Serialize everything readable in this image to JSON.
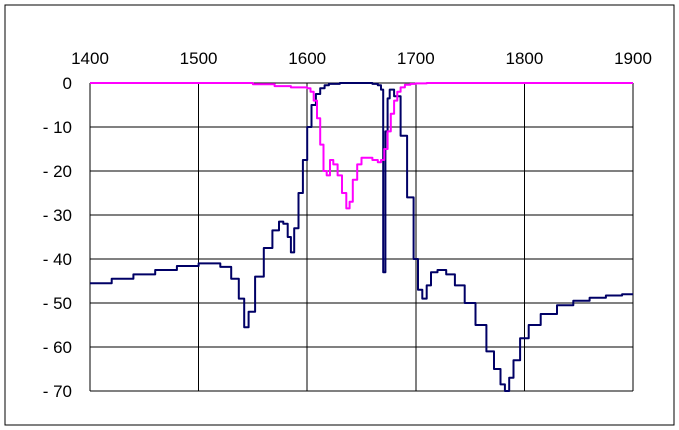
{
  "chart_data": {
    "type": "line",
    "title": "",
    "xlabel": "",
    "ylabel": "",
    "xlim": [
      1400,
      1900
    ],
    "ylim": [
      -70,
      0
    ],
    "x_ticks": [
      1400,
      1500,
      1600,
      1700,
      1800,
      1900
    ],
    "x_tick_labels": [
      "1400",
      "1500",
      "1600",
      "1700",
      "1800",
      "1900"
    ],
    "y_ticks": [
      0,
      -10,
      -20,
      -30,
      -40,
      -50,
      -60,
      -70
    ],
    "y_tick_labels": [
      "0",
      "- 10",
      "- 20",
      "- 30",
      "- 40",
      "- 50",
      "- 60",
      "- 70"
    ],
    "x_axis_position": "top",
    "grid": true,
    "legend": "none",
    "series": [
      {
        "color": "#000066",
        "x": [
          1400,
          1420,
          1440,
          1460,
          1480,
          1500,
          1510,
          1520,
          1530,
          1537,
          1542,
          1546,
          1552,
          1560,
          1568,
          1574,
          1578,
          1582,
          1585,
          1588,
          1592,
          1596,
          1600,
          1604,
          1608,
          1612,
          1616,
          1620,
          1630,
          1640,
          1650,
          1660,
          1665,
          1668,
          1670,
          1672,
          1674,
          1676,
          1680,
          1686,
          1692,
          1698,
          1702,
          1706,
          1710,
          1714,
          1720,
          1728,
          1736,
          1745,
          1755,
          1765,
          1772,
          1778,
          1782,
          1786,
          1790,
          1796,
          1804,
          1815,
          1830,
          1845,
          1860,
          1875,
          1890,
          1900
        ],
        "y": [
          -45.5,
          -44.5,
          -43.5,
          -42.5,
          -41.6,
          -41.0,
          -41.0,
          -41.8,
          -44.5,
          -49.0,
          -55.5,
          -52.0,
          -44.0,
          -37.5,
          -33.5,
          -31.5,
          -32.0,
          -35.0,
          -38.5,
          -33.0,
          -25.0,
          -17.5,
          -10.0,
          -5.0,
          -2.5,
          -1.2,
          -0.5,
          -0.2,
          0.0,
          0.0,
          0.0,
          -0.2,
          -0.5,
          -1.5,
          -43.0,
          -11.0,
          -3.5,
          -1.5,
          -3.0,
          -12.0,
          -26.0,
          -40.0,
          -47.0,
          -49.0,
          -46.0,
          -43.0,
          -42.5,
          -43.5,
          -46.0,
          -50.0,
          -55.0,
          -61.0,
          -65.0,
          -68.5,
          -70.0,
          -67.0,
          -63.0,
          -58.0,
          -55.0,
          -52.5,
          -50.5,
          -49.5,
          -48.8,
          -48.3,
          -48.0,
          -48.0
        ]
      },
      {
        "color": "#ff00ff",
        "x": [
          1400,
          1500,
          1550,
          1570,
          1585,
          1595,
          1600,
          1603,
          1606,
          1609,
          1612,
          1615,
          1618,
          1621,
          1624,
          1628,
          1632,
          1636,
          1639,
          1642,
          1646,
          1650,
          1655,
          1660,
          1665,
          1668,
          1671,
          1674,
          1677,
          1680,
          1683,
          1686,
          1690,
          1695,
          1700,
          1710,
          1750,
          1800,
          1900
        ],
        "y": [
          0.0,
          0.0,
          -0.3,
          -0.7,
          -1.0,
          -1.0,
          -1.2,
          -2.0,
          -4.0,
          -8.0,
          -14.0,
          -20.0,
          -21.0,
          -17.5,
          -18.5,
          -21.0,
          -25.0,
          -28.5,
          -27.0,
          -22.0,
          -18.5,
          -17.0,
          -17.0,
          -17.5,
          -18.0,
          -17.5,
          -15.0,
          -11.0,
          -7.0,
          -4.0,
          -2.0,
          -1.0,
          -0.4,
          -0.2,
          -0.1,
          0.0,
          0.0,
          0.0,
          0.0
        ]
      }
    ]
  }
}
